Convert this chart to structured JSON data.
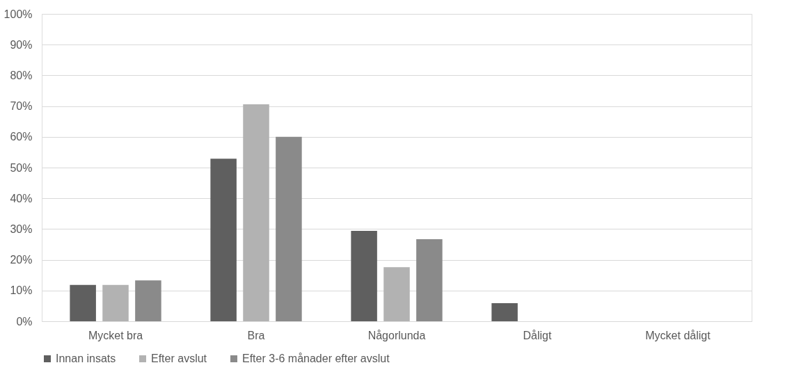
{
  "chart_data": {
    "type": "bar",
    "categories": [
      "Mycket bra",
      "Bra",
      "Någorlunda",
      "Dåligt",
      "Mycket dåligt"
    ],
    "series": [
      {
        "name": "Innan insats",
        "color": "#5f5f5f",
        "values": [
          11.8,
          52.9,
          29.4,
          5.9,
          0
        ]
      },
      {
        "name": "Efter avslut",
        "color": "#b2b2b2",
        "values": [
          11.8,
          70.6,
          17.6,
          0,
          0
        ]
      },
      {
        "name": "Efter 3-6 månader efter avslut",
        "color": "#8a8a8a",
        "values": [
          13.3,
          60.0,
          26.7,
          0,
          0
        ]
      }
    ],
    "ylim": [
      0,
      100
    ],
    "yticks": [
      {
        "value": 0,
        "label": "0%"
      },
      {
        "value": 10,
        "label": "10%"
      },
      {
        "value": 20,
        "label": "20%"
      },
      {
        "value": 30,
        "label": "30%"
      },
      {
        "value": 40,
        "label": "40%"
      },
      {
        "value": 50,
        "label": "50%"
      },
      {
        "value": 60,
        "label": "60%"
      },
      {
        "value": 70,
        "label": "70%"
      },
      {
        "value": 80,
        "label": "80%"
      },
      {
        "value": 90,
        "label": "90%"
      },
      {
        "value": 100,
        "label": "100%"
      }
    ],
    "grid": "y",
    "legend": "bottom"
  }
}
